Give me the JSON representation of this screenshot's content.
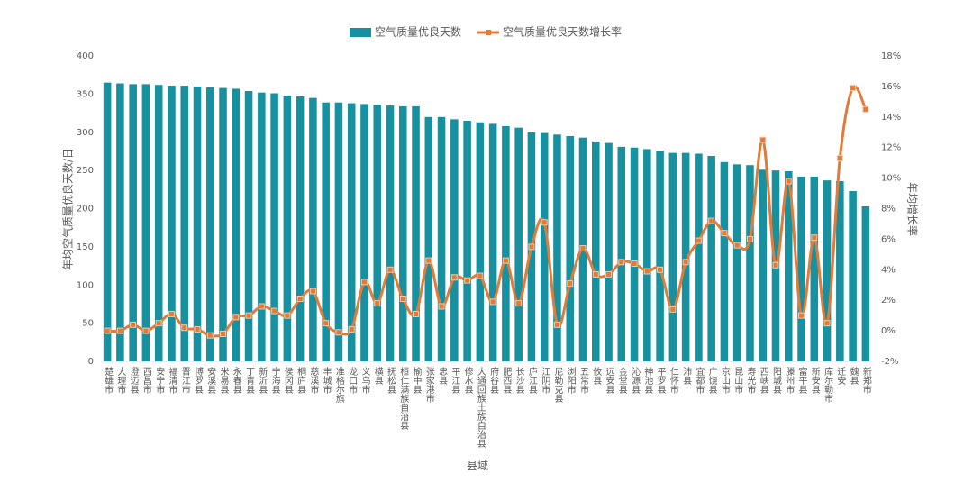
{
  "chart_data": {
    "type": "bar_line",
    "categories": [
      "楚雄市",
      "大理市",
      "澄迈县",
      "西昌市",
      "安宁市",
      "福清市",
      "晋江市",
      "博罗县",
      "安溪县",
      "米易县",
      "永春县",
      "丁青县",
      "新沂县",
      "宁海县",
      "侯冈县",
      "桐庐县",
      "慈溪市",
      "丰城市",
      "准格尔旗",
      "龙口市",
      "义乌市",
      "横县",
      "抚松县",
      "桓仁满族自治县",
      "榆中县",
      "张家港市",
      "忠县",
      "平江县",
      "修水县",
      "大通回族土族自治县",
      "府谷县",
      "肥西县",
      "长沙县",
      "庐江县",
      "江阴市",
      "尼勒克县",
      "浏阳市",
      "五常市",
      "攸县",
      "远安县",
      "金堂县",
      "沁源县",
      "神池县",
      "平罗县",
      "仁怀市",
      "沛县",
      "宜都市",
      "广饶县",
      "京山市",
      "昆山市",
      "寿光市",
      "西峡县",
      "阳城县",
      "滕州市",
      "富平县",
      "新安县",
      "库尔勒市",
      "迁安",
      "魏县",
      "新郑市"
    ],
    "series": [
      {
        "name": "空气质量优良天数",
        "color": "#17909f",
        "type": "bar",
        "values": [
          365,
          364,
          363,
          363,
          362,
          361,
          361,
          360,
          359,
          358,
          357,
          354,
          352,
          351,
          348,
          347,
          345,
          339,
          339,
          338,
          337,
          336,
          335,
          334,
          334,
          320,
          320,
          317,
          315,
          313,
          311,
          308,
          306,
          300,
          299,
          297,
          295,
          293,
          288,
          286,
          281,
          280,
          278,
          276,
          273,
          273,
          272,
          269,
          261,
          258,
          257,
          251,
          250,
          249,
          242,
          242,
          237,
          236,
          223,
          203
        ]
      },
      {
        "name": "空气质量优良天数增长率",
        "color": "#e07b39",
        "type": "line",
        "axis": "y2",
        "values": [
          0.0,
          0.0,
          0.4,
          0.0,
          0.5,
          1.1,
          0.2,
          0.1,
          -0.3,
          -0.2,
          0.9,
          1.0,
          1.6,
          1.3,
          1.0,
          2.1,
          2.6,
          0.5,
          -0.1,
          0.1,
          3.2,
          1.8,
          4.0,
          2.1,
          1.1,
          4.6,
          1.6,
          3.5,
          3.3,
          3.6,
          1.9,
          4.6,
          1.8,
          5.5,
          7.1,
          0.4,
          3.1,
          5.4,
          3.7,
          3.7,
          4.5,
          4.4,
          3.9,
          4.0,
          1.4,
          4.5,
          5.9,
          7.2,
          6.4,
          5.6,
          6.0,
          12.5,
          4.3,
          9.8,
          1.0,
          6.1,
          0.5,
          11.3,
          15.9,
          14.5
        ]
      }
    ],
    "x_label": "县域",
    "y_label": "年均空气质量优良天数/日",
    "y2_label": "年均增长率",
    "ylim": [
      0,
      400
    ],
    "yticks": [
      0,
      50,
      100,
      150,
      200,
      250,
      300,
      350,
      400
    ],
    "y2lim": [
      -2,
      18
    ],
    "y2ticks": [
      {
        "value": -2,
        "label": "-2%"
      },
      {
        "value": 0,
        "label": "0%"
      },
      {
        "value": 2,
        "label": "2%"
      },
      {
        "value": 4,
        "label": "4%"
      },
      {
        "value": 6,
        "label": "6%"
      },
      {
        "value": 8,
        "label": "8%"
      },
      {
        "value": 10,
        "label": "10%"
      },
      {
        "value": 12,
        "label": "12%"
      },
      {
        "value": 14,
        "label": "14%"
      },
      {
        "value": 16,
        "label": "16%"
      },
      {
        "value": 18,
        "label": "18%"
      }
    ],
    "legend": "top",
    "grid": false
  }
}
